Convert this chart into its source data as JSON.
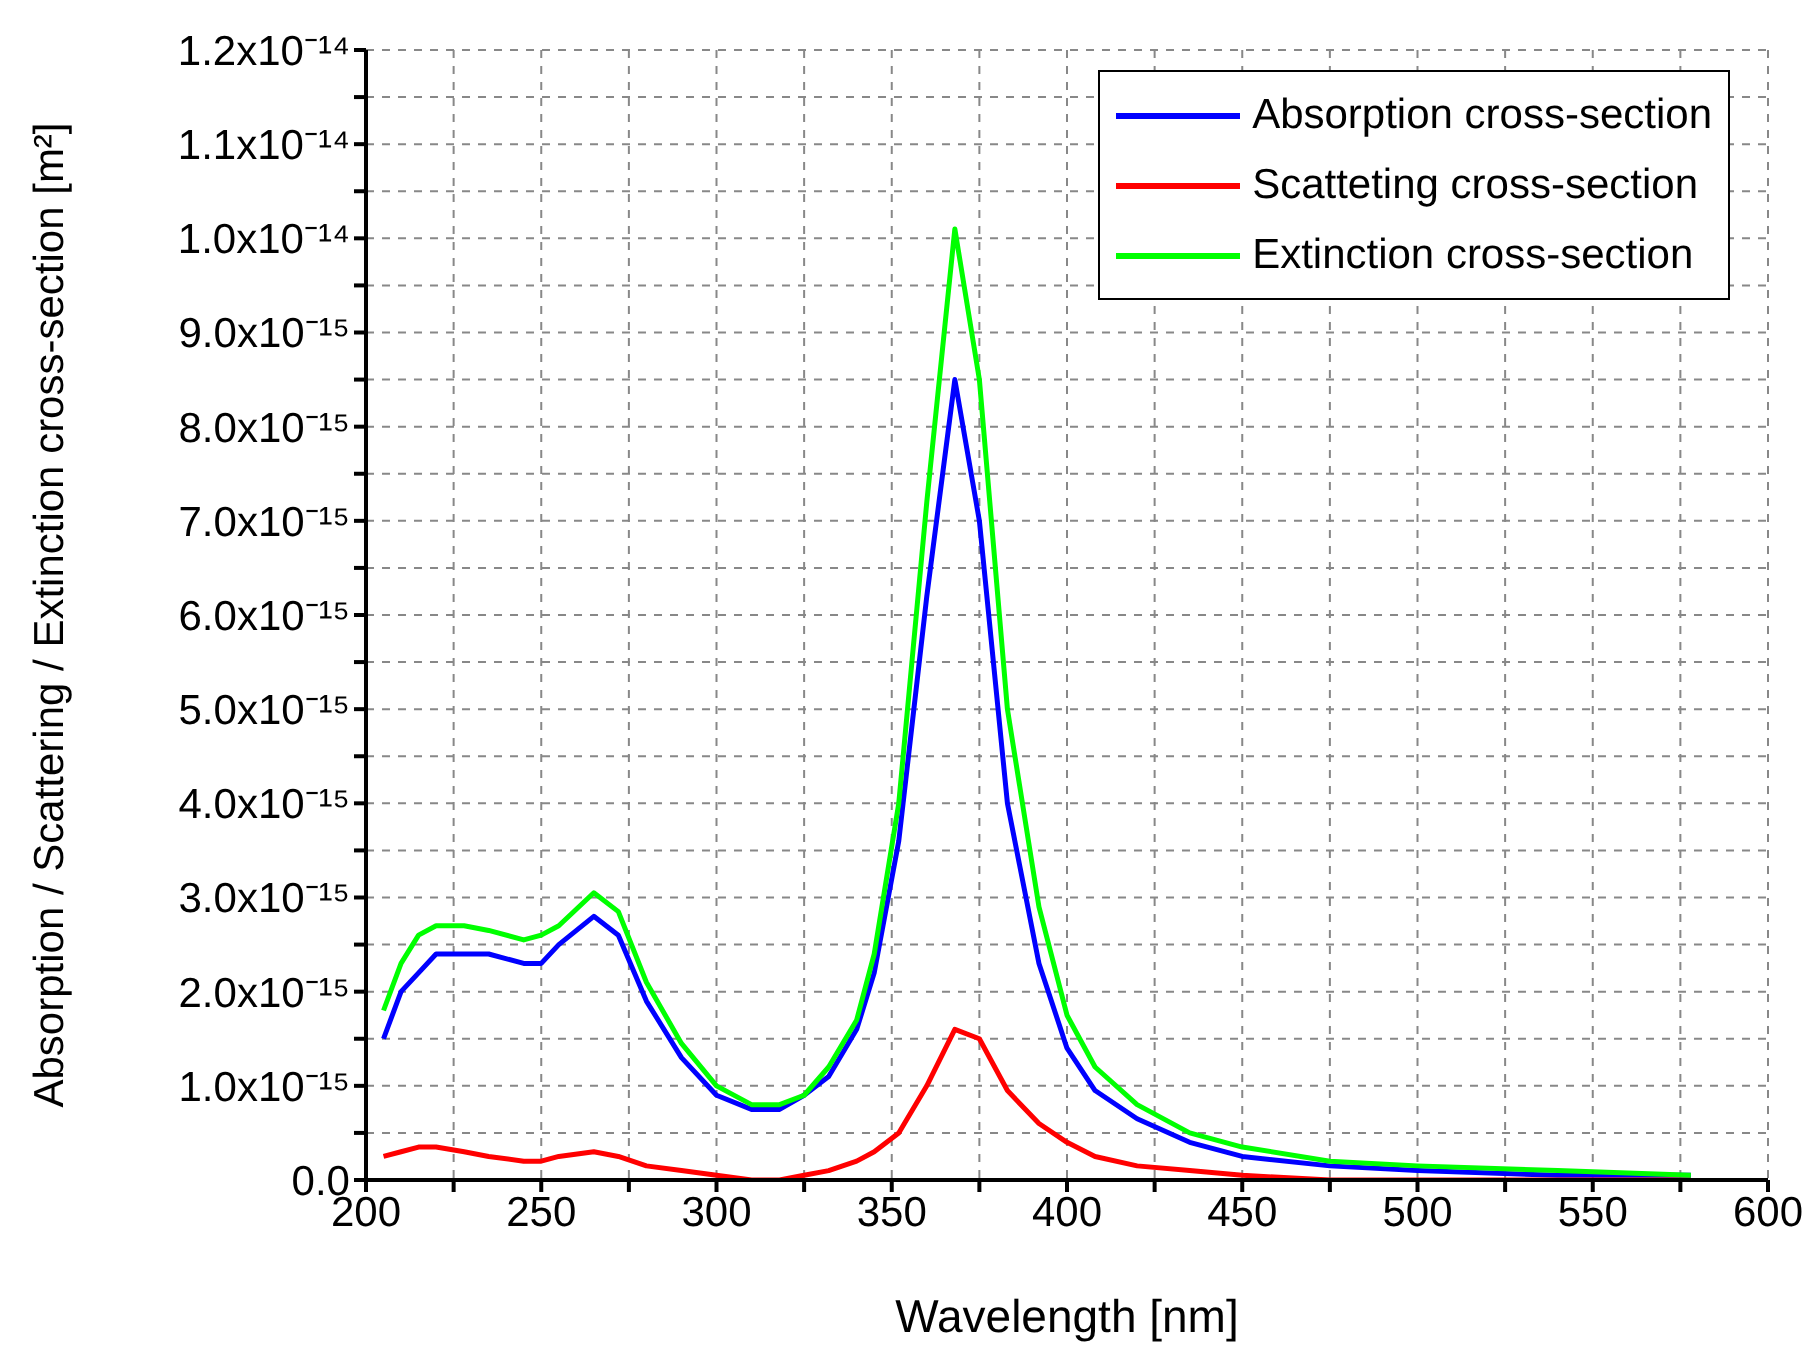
{
  "chart_data": {
    "type": "line",
    "xlabel": "Wavelength [nm]",
    "ylabel": "Absorption / Scattering / Extinction cross-section [m²]",
    "x": [
      205,
      210,
      215,
      220,
      228,
      235,
      245,
      250,
      255,
      265,
      272,
      280,
      290,
      300,
      310,
      318,
      325,
      332,
      340,
      345,
      352,
      360,
      368,
      375,
      383,
      392,
      400,
      408,
      420,
      435,
      450,
      475,
      500,
      540,
      578
    ],
    "series": [
      {
        "name": "Absorption cross-section",
        "color": "#0000ff",
        "values": [
          1.5e-15,
          2e-15,
          2.2e-15,
          2.4e-15,
          2.4e-15,
          2.4e-15,
          2.3e-15,
          2.3e-15,
          2.5e-15,
          2.8e-15,
          2.6e-15,
          1.9e-15,
          1.3e-15,
          9e-16,
          7.5e-16,
          7.5e-16,
          9e-16,
          1.1e-15,
          1.6e-15,
          2.2e-15,
          3.6e-15,
          6.2e-15,
          8.5e-15,
          7e-15,
          4e-15,
          2.3e-15,
          1.4e-15,
          9.5e-16,
          6.5e-16,
          4e-16,
          2.5e-16,
          1.5e-16,
          1e-16,
          5e-17,
          5e-17
        ]
      },
      {
        "name": "Scatteting cross-section",
        "color": "#ff0000",
        "values": [
          2.5e-16,
          3e-16,
          3.5e-16,
          3.5e-16,
          3e-16,
          2.5e-16,
          2e-16,
          2e-16,
          2.5e-16,
          3e-16,
          2.5e-16,
          1.5e-16,
          1e-16,
          5e-17,
          0,
          0,
          5e-17,
          1e-16,
          2e-16,
          3e-16,
          5e-16,
          1e-15,
          1.6e-15,
          1.5e-15,
          9.5e-16,
          6e-16,
          4e-16,
          2.5e-16,
          1.5e-16,
          1e-16,
          5e-17,
          0,
          0,
          0,
          0
        ]
      },
      {
        "name": "Extinction cross-section",
        "color": "#00ff00",
        "values": [
          1.8e-15,
          2.3e-15,
          2.6e-15,
          2.7e-15,
          2.7e-15,
          2.65e-15,
          2.55e-15,
          2.6e-15,
          2.7e-15,
          3.05e-15,
          2.85e-15,
          2.1e-15,
          1.45e-15,
          1e-15,
          8e-16,
          8e-16,
          9e-16,
          1.2e-15,
          1.7e-15,
          2.4e-15,
          4e-15,
          7.2e-15,
          1.01e-14,
          8.5e-15,
          5e-15,
          2.9e-15,
          1.75e-15,
          1.2e-15,
          8e-16,
          5e-16,
          3.5e-16,
          2e-16,
          1.5e-16,
          1e-16,
          5e-17
        ]
      }
    ],
    "xlim": [
      200,
      600
    ],
    "xticks": [
      200,
      {
        "value": 225,
        "label": null
      },
      250,
      {
        "value": 275,
        "label": null
      },
      300,
      {
        "value": 325,
        "label": null
      },
      350,
      {
        "value": 375,
        "label": null
      },
      400,
      {
        "value": 425,
        "label": null
      },
      450,
      {
        "value": 475,
        "label": null
      },
      500,
      {
        "value": 525,
        "label": null
      },
      550,
      {
        "value": 575,
        "label": null
      },
      600
    ],
    "ylim": [
      0,
      1.2e-14
    ],
    "yticks": [
      {
        "value": 0,
        "label": "0.0"
      },
      {
        "value": 5e-16,
        "label": null
      },
      {
        "value": 1e-15,
        "label": "1.0x10⁻¹⁵"
      },
      {
        "value": 1.5e-15,
        "label": null
      },
      {
        "value": 2e-15,
        "label": "2.0x10⁻¹⁵"
      },
      {
        "value": 2.5e-15,
        "label": null
      },
      {
        "value": 3e-15,
        "label": "3.0x10⁻¹⁵"
      },
      {
        "value": 3.5e-15,
        "label": null
      },
      {
        "value": 4e-15,
        "label": "4.0x10⁻¹⁵"
      },
      {
        "value": 4.5e-15,
        "label": null
      },
      {
        "value": 5e-15,
        "label": "5.0x10⁻¹⁵"
      },
      {
        "value": 5.5e-15,
        "label": null
      },
      {
        "value": 6e-15,
        "label": "6.0x10⁻¹⁵"
      },
      {
        "value": 6.5e-15,
        "label": null
      },
      {
        "value": 7e-15,
        "label": "7.0x10⁻¹⁵"
      },
      {
        "value": 7.5e-15,
        "label": null
      },
      {
        "value": 8e-15,
        "label": "8.0x10⁻¹⁵"
      },
      {
        "value": 8.5e-15,
        "label": null
      },
      {
        "value": 9e-15,
        "label": "9.0x10⁻¹⁵"
      },
      {
        "value": 9.5e-15,
        "label": null
      },
      {
        "value": 1e-14,
        "label": "1.0x10⁻¹⁴"
      },
      {
        "value": 1.05e-14,
        "label": null
      },
      {
        "value": 1.1e-14,
        "label": "1.1x10⁻¹⁴"
      },
      {
        "value": 1.15e-14,
        "label": null
      },
      {
        "value": 1.2e-14,
        "label": "1.2x10⁻¹⁴"
      }
    ],
    "grid": true,
    "legend": "top right",
    "marker": "none",
    "line_style": "solid"
  }
}
